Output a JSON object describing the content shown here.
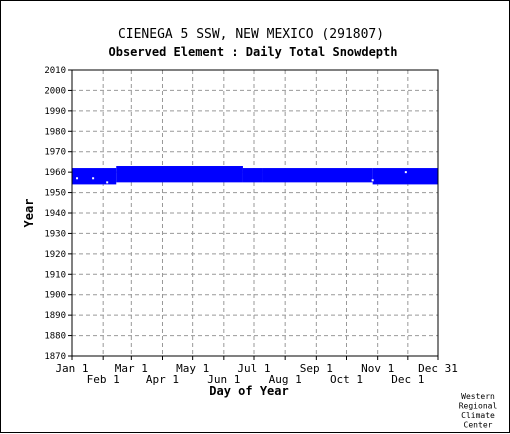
{
  "chart_data": {
    "type": "table",
    "title": "CIENEGA 5 SSW, NEW MEXICO   (291807)",
    "subtitle": "Observed Element : Daily Total Snowdepth",
    "xlabel": "Day of Year",
    "ylabel": "Year",
    "ylim": [
      1870,
      2010
    ],
    "y_ticks": [
      1870,
      1880,
      1890,
      1900,
      1910,
      1920,
      1930,
      1940,
      1950,
      1960,
      1970,
      1980,
      1990,
      2000,
      2010
    ],
    "xlim": [
      1,
      365
    ],
    "x_ticks_upper": [
      {
        "label": "Jan 1",
        "day": 1
      },
      {
        "label": "Mar 1",
        "day": 60
      },
      {
        "label": "May 1",
        "day": 121
      },
      {
        "label": "Jul 1",
        "day": 182
      },
      {
        "label": "Sep 1",
        "day": 244
      },
      {
        "label": "Nov 1",
        "day": 305
      },
      {
        "label": "Dec 31",
        "day": 365
      }
    ],
    "x_ticks_lower": [
      {
        "label": "Feb 1",
        "day": 32
      },
      {
        "label": "Apr 1",
        "day": 91
      },
      {
        "label": "Jun 1",
        "day": 152
      },
      {
        "label": "Aug 1",
        "day": 213
      },
      {
        "label": "Oct 1",
        "day": 274
      },
      {
        "label": "Dec 1",
        "day": 335
      }
    ],
    "grid": true,
    "series_color": "#0000ff",
    "coverage": [
      {
        "day_start": 1,
        "day_end": 45,
        "year_start": 1954,
        "year_end": 1962
      },
      {
        "day_start": 45,
        "day_end": 171,
        "year_start": 1955,
        "year_end": 1963
      },
      {
        "day_start": 171,
        "day_end": 190,
        "year_start": 1955,
        "year_end": 1962
      },
      {
        "day_start": 190,
        "day_end": 300,
        "year_start": 1955,
        "year_end": 1962
      },
      {
        "day_start": 300,
        "day_end": 365,
        "year_start": 1954,
        "year_end": 1962
      }
    ],
    "missing_days": [
      {
        "day": 6,
        "year": 1957
      },
      {
        "day": 22,
        "year": 1957
      },
      {
        "day": 36,
        "year": 1955
      },
      {
        "day": 300,
        "year": 1956
      },
      {
        "day": 333,
        "year": 1960
      }
    ]
  },
  "credit": [
    "Western",
    "Regional",
    "Climate",
    "Center"
  ]
}
